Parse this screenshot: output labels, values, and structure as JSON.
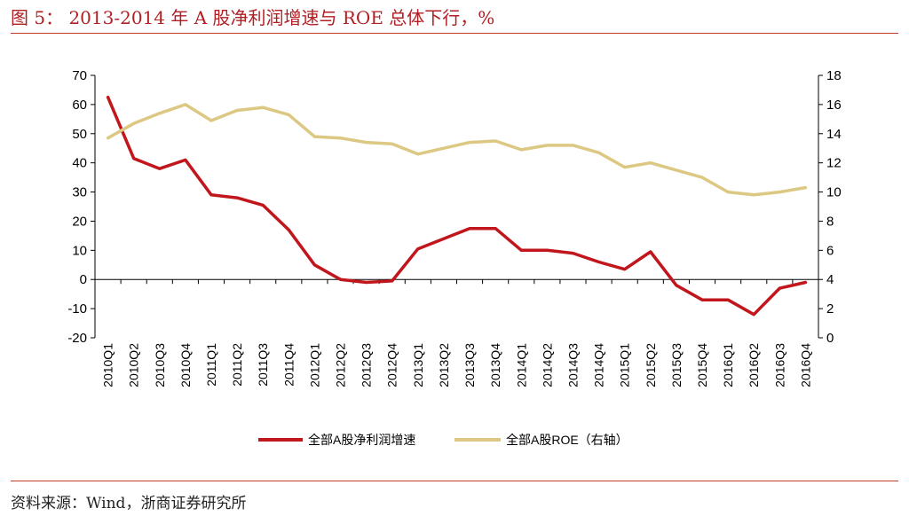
{
  "title": "图 5：  2013-2014 年 A 股净利润增速与 ROE 总体下行，%",
  "source": "资料来源：Wind，浙商证券研究所",
  "colors": {
    "net_profit": "#c0161c",
    "roe": "#dcc882",
    "rule": "#c0392b"
  },
  "chart_data": {
    "type": "line",
    "x": [
      "2010Q1",
      "2010Q2",
      "2010Q3",
      "2010Q4",
      "2011Q1",
      "2011Q2",
      "2011Q3",
      "2011Q4",
      "2012Q1",
      "2012Q2",
      "2012Q3",
      "2012Q4",
      "2013Q1",
      "2013Q2",
      "2013Q3",
      "2013Q4",
      "2014Q1",
      "2014Q2",
      "2014Q3",
      "2014Q4",
      "2015Q1",
      "2015Q2",
      "2015Q3",
      "2015Q4",
      "2016Q1",
      "2016Q2",
      "2016Q3",
      "2016Q4"
    ],
    "y_left": {
      "min": -20,
      "max": 70,
      "ticks": [
        70,
        60,
        50,
        40,
        30,
        20,
        10,
        0,
        -10,
        -20
      ]
    },
    "y_right": {
      "min": 0,
      "max": 18,
      "ticks": [
        18,
        16,
        14,
        12,
        10,
        8,
        6,
        4,
        2,
        0
      ]
    },
    "series": [
      {
        "name": "全部A股净利润增速",
        "axis": "left",
        "values": [
          62.5,
          41.5,
          38,
          41,
          29,
          28,
          25.5,
          17,
          5,
          0,
          -1,
          -0.5,
          10.5,
          14,
          17.5,
          17.5,
          10,
          10,
          9,
          6,
          3.5,
          9.5,
          -2,
          -7,
          -7,
          -12,
          -3,
          -1
        ]
      },
      {
        "name": "全部A股ROE（右轴）",
        "axis": "right",
        "values": [
          13.7,
          14.7,
          15.4,
          16.0,
          14.9,
          15.6,
          15.8,
          15.3,
          13.8,
          13.7,
          13.4,
          13.3,
          12.6,
          13.0,
          13.4,
          13.5,
          12.9,
          13.2,
          13.2,
          12.7,
          11.7,
          12.0,
          11.5,
          11.0,
          10.0,
          9.8,
          10.0,
          10.3
        ]
      }
    ],
    "legend": "bottom",
    "grid": false
  }
}
